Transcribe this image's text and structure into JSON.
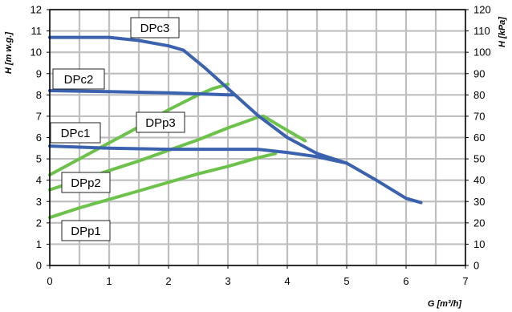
{
  "chart_data": {
    "type": "line",
    "title": "",
    "xlabel": "G [m³/h]",
    "ylabel": "H [m w.g.]",
    "y2label": "H [kPa]",
    "xlim": [
      0,
      7
    ],
    "ylim": [
      0,
      12
    ],
    "y2lim": [
      0,
      120
    ],
    "x_ticks": [
      "0",
      "1",
      "2",
      "3",
      "4",
      "5",
      "6",
      "7"
    ],
    "y_ticks": [
      "0",
      "1",
      "2",
      "3",
      "4",
      "5",
      "6",
      "7",
      "8",
      "9",
      "10",
      "11",
      "12"
    ],
    "y2_ticks": [
      "0",
      "10",
      "20",
      "30",
      "40",
      "50",
      "60",
      "70",
      "80",
      "90",
      "100",
      "110",
      "120"
    ],
    "grid": true,
    "legend": "none",
    "colors": {
      "dpc": "#3a62ae",
      "dpp": "#6cc24a",
      "grid": "#bfbfbf",
      "frame": "#000000"
    },
    "series": [
      {
        "name": "DPc3",
        "color": "#3a62ae",
        "points": [
          [
            0,
            10.7
          ],
          [
            1.0,
            10.7
          ],
          [
            1.5,
            10.55
          ],
          [
            2.0,
            10.3
          ],
          [
            2.25,
            10.1
          ],
          [
            2.6,
            9.3
          ],
          [
            3.0,
            8.3
          ],
          [
            3.5,
            7.05
          ],
          [
            4.0,
            6.0
          ],
          [
            4.5,
            5.25
          ],
          [
            5.0,
            4.8
          ],
          [
            5.5,
            4.0
          ],
          [
            6.0,
            3.15
          ],
          [
            6.25,
            2.95
          ]
        ]
      },
      {
        "name": "DPc2",
        "color": "#3a62ae",
        "points": [
          [
            0,
            8.2
          ],
          [
            1.0,
            8.15
          ],
          [
            2.0,
            8.1
          ],
          [
            2.5,
            8.05
          ],
          [
            3.0,
            8.0
          ],
          [
            3.1,
            8.0
          ]
        ]
      },
      {
        "name": "DPc1",
        "color": "#3a62ae",
        "points": [
          [
            0,
            5.6
          ],
          [
            1.0,
            5.5
          ],
          [
            2.0,
            5.45
          ],
          [
            3.0,
            5.45
          ],
          [
            3.5,
            5.45
          ],
          [
            4.0,
            5.3
          ],
          [
            4.5,
            5.1
          ],
          [
            5.0,
            4.8
          ]
        ]
      },
      {
        "name": "DPp3",
        "color": "#6cc24a",
        "points": [
          [
            0,
            4.25
          ],
          [
            0.5,
            5.0
          ],
          [
            1.0,
            5.75
          ],
          [
            1.5,
            6.5
          ],
          [
            2.0,
            7.3
          ],
          [
            2.5,
            8.0
          ],
          [
            2.75,
            8.3
          ],
          [
            3.0,
            8.5
          ]
        ]
      },
      {
        "name": "DPp2",
        "color": "#6cc24a",
        "points": [
          [
            0,
            3.55
          ],
          [
            0.5,
            4.0
          ],
          [
            1.0,
            4.45
          ],
          [
            1.5,
            4.9
          ],
          [
            2.0,
            5.4
          ],
          [
            2.5,
            5.9
          ],
          [
            3.0,
            6.45
          ],
          [
            3.5,
            6.95
          ],
          [
            3.6,
            7.0
          ],
          [
            3.9,
            6.5
          ],
          [
            4.3,
            5.85
          ]
        ]
      },
      {
        "name": "DPp1",
        "color": "#6cc24a",
        "points": [
          [
            0,
            2.25
          ],
          [
            0.5,
            2.7
          ],
          [
            1.0,
            3.1
          ],
          [
            1.5,
            3.5
          ],
          [
            2.0,
            3.9
          ],
          [
            2.5,
            4.3
          ],
          [
            3.0,
            4.65
          ],
          [
            3.5,
            5.05
          ],
          [
            3.8,
            5.25
          ]
        ]
      }
    ]
  },
  "callouts": [
    "DPc3",
    "DPc2",
    "DPc1",
    "DPp3",
    "DPp2",
    "DPp1"
  ]
}
